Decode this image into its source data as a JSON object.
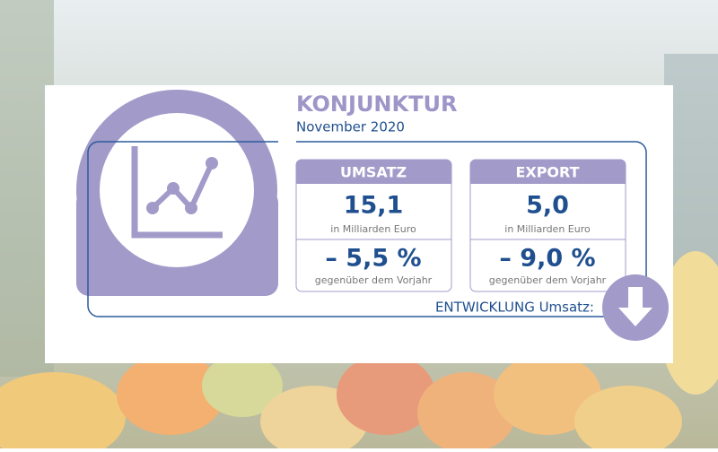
{
  "header": {
    "title": "KONJUNKTUR",
    "subtitle": "November 2020"
  },
  "cards": [
    {
      "label": "UMSATZ",
      "value": "15,1",
      "unit": "in Milliarden Euro",
      "change": "– 5,5 %",
      "change_note": "gegenüber dem Vorjahr"
    },
    {
      "label": "EXPORT",
      "value": "5,0",
      "unit": "in Milliarden Euro",
      "change": "– 9,0 %",
      "change_note": "gegenüber dem Vorjahr"
    }
  ],
  "footer": {
    "trend_label": "ENTWICKLUNG Umsatz:"
  }
}
